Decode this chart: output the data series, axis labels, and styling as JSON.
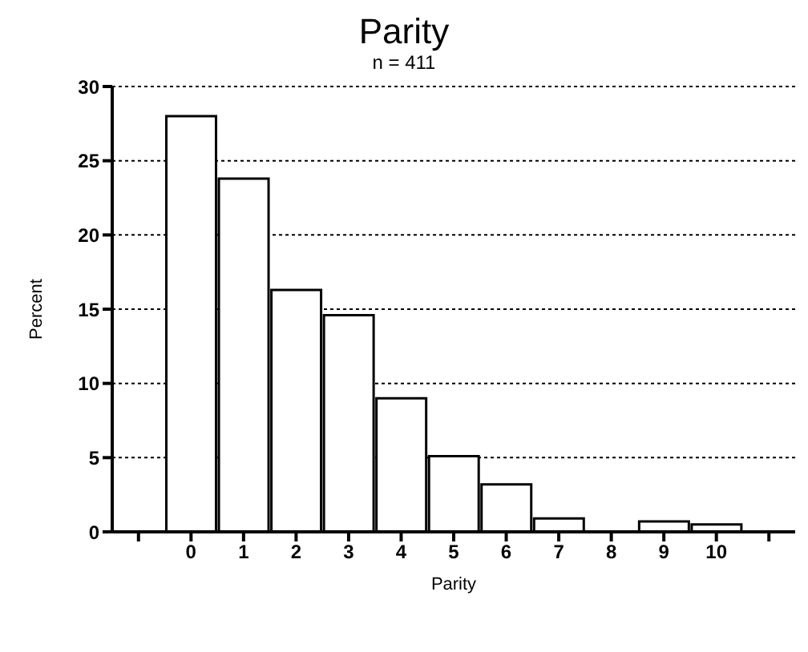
{
  "chart_data": {
    "type": "bar",
    "title": "Parity",
    "subtitle": "n = 411",
    "xlabel": "Parity",
    "ylabel": "Percent",
    "categories": [
      null,
      "0",
      "1",
      "2",
      "3",
      "4",
      "5",
      "6",
      "7",
      "8",
      "9",
      "10",
      null
    ],
    "values": [
      null,
      28.0,
      23.8,
      16.3,
      14.6,
      9.0,
      5.1,
      3.2,
      0.9,
      0,
      0.7,
      0.5,
      null
    ],
    "color": "#ffffff",
    "ylim": [
      0,
      30
    ],
    "yticks": [
      0,
      5,
      10,
      15,
      20,
      25,
      30
    ],
    "grid": "y"
  }
}
